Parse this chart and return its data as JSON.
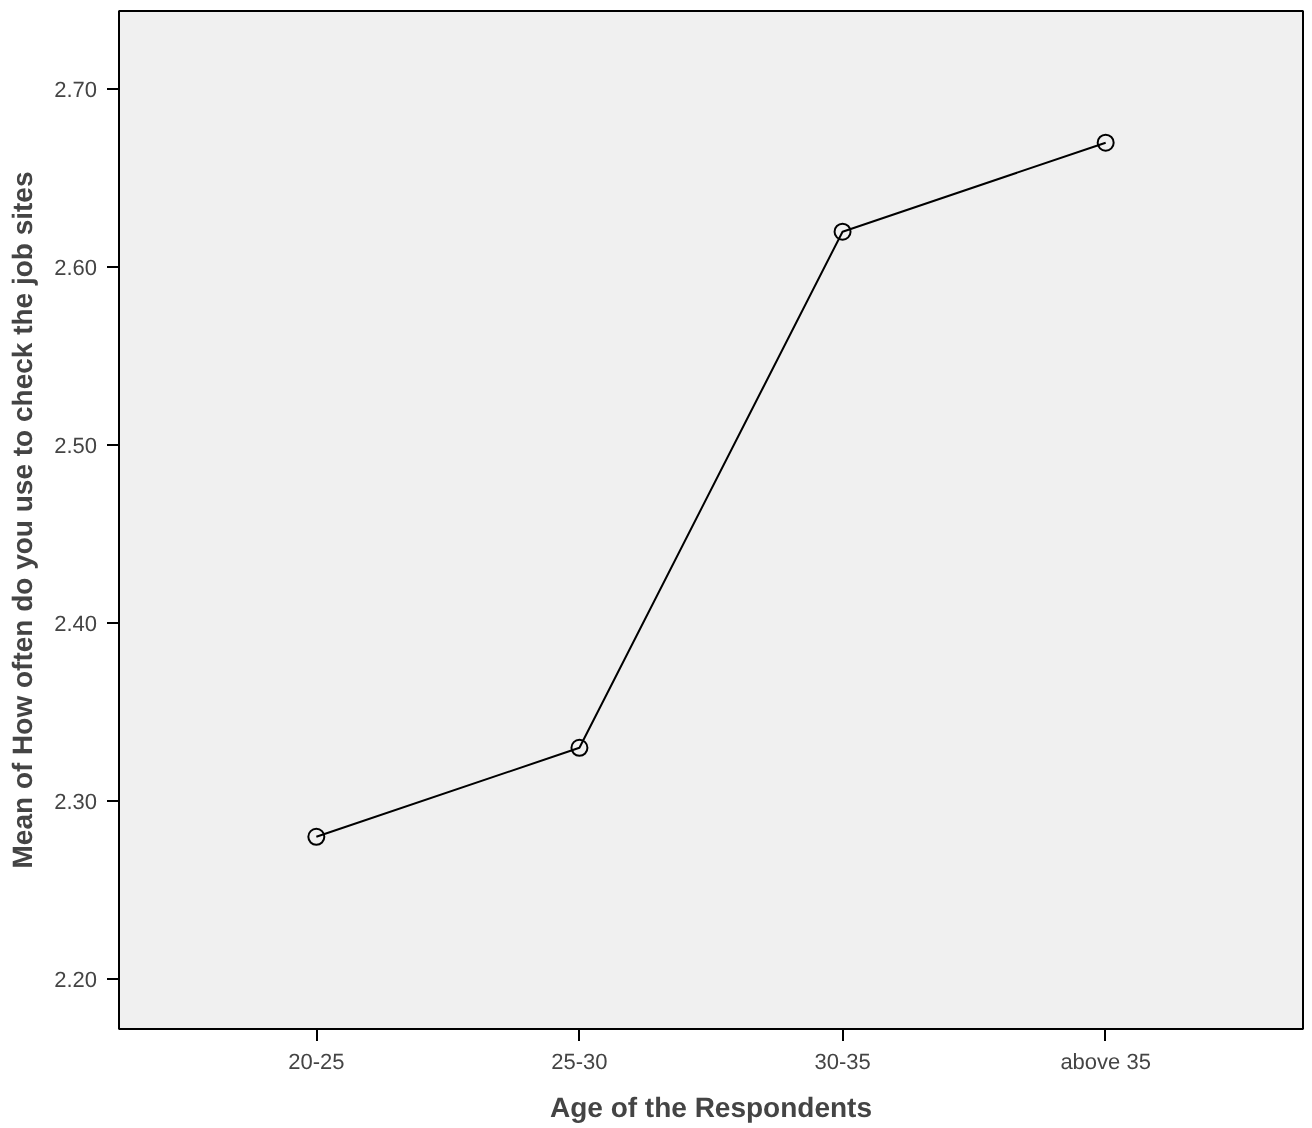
{
  "chart_data": {
    "type": "line",
    "xlabel": "Age of the Respondents",
    "ylabel": "Mean of How often do you use to check the job sites",
    "categories": [
      "20-25",
      "25-30",
      "30-35",
      "above 35"
    ],
    "series": [
      {
        "color": "#000000",
        "values": [
          2.28,
          2.33,
          2.62,
          2.67
        ]
      }
    ],
    "ylim": [
      2.172,
      2.744
    ],
    "yticks": [
      {
        "value": 2.2,
        "label": "2.20"
      },
      {
        "value": 2.3,
        "label": "2.30"
      },
      {
        "value": 2.4,
        "label": "2.40"
      },
      {
        "value": 2.5,
        "label": "2.50"
      },
      {
        "value": 2.6,
        "label": "2.60"
      },
      {
        "value": 2.7,
        "label": "2.70"
      }
    ],
    "grid": false,
    "marker": "circle",
    "line_style": "solid"
  }
}
